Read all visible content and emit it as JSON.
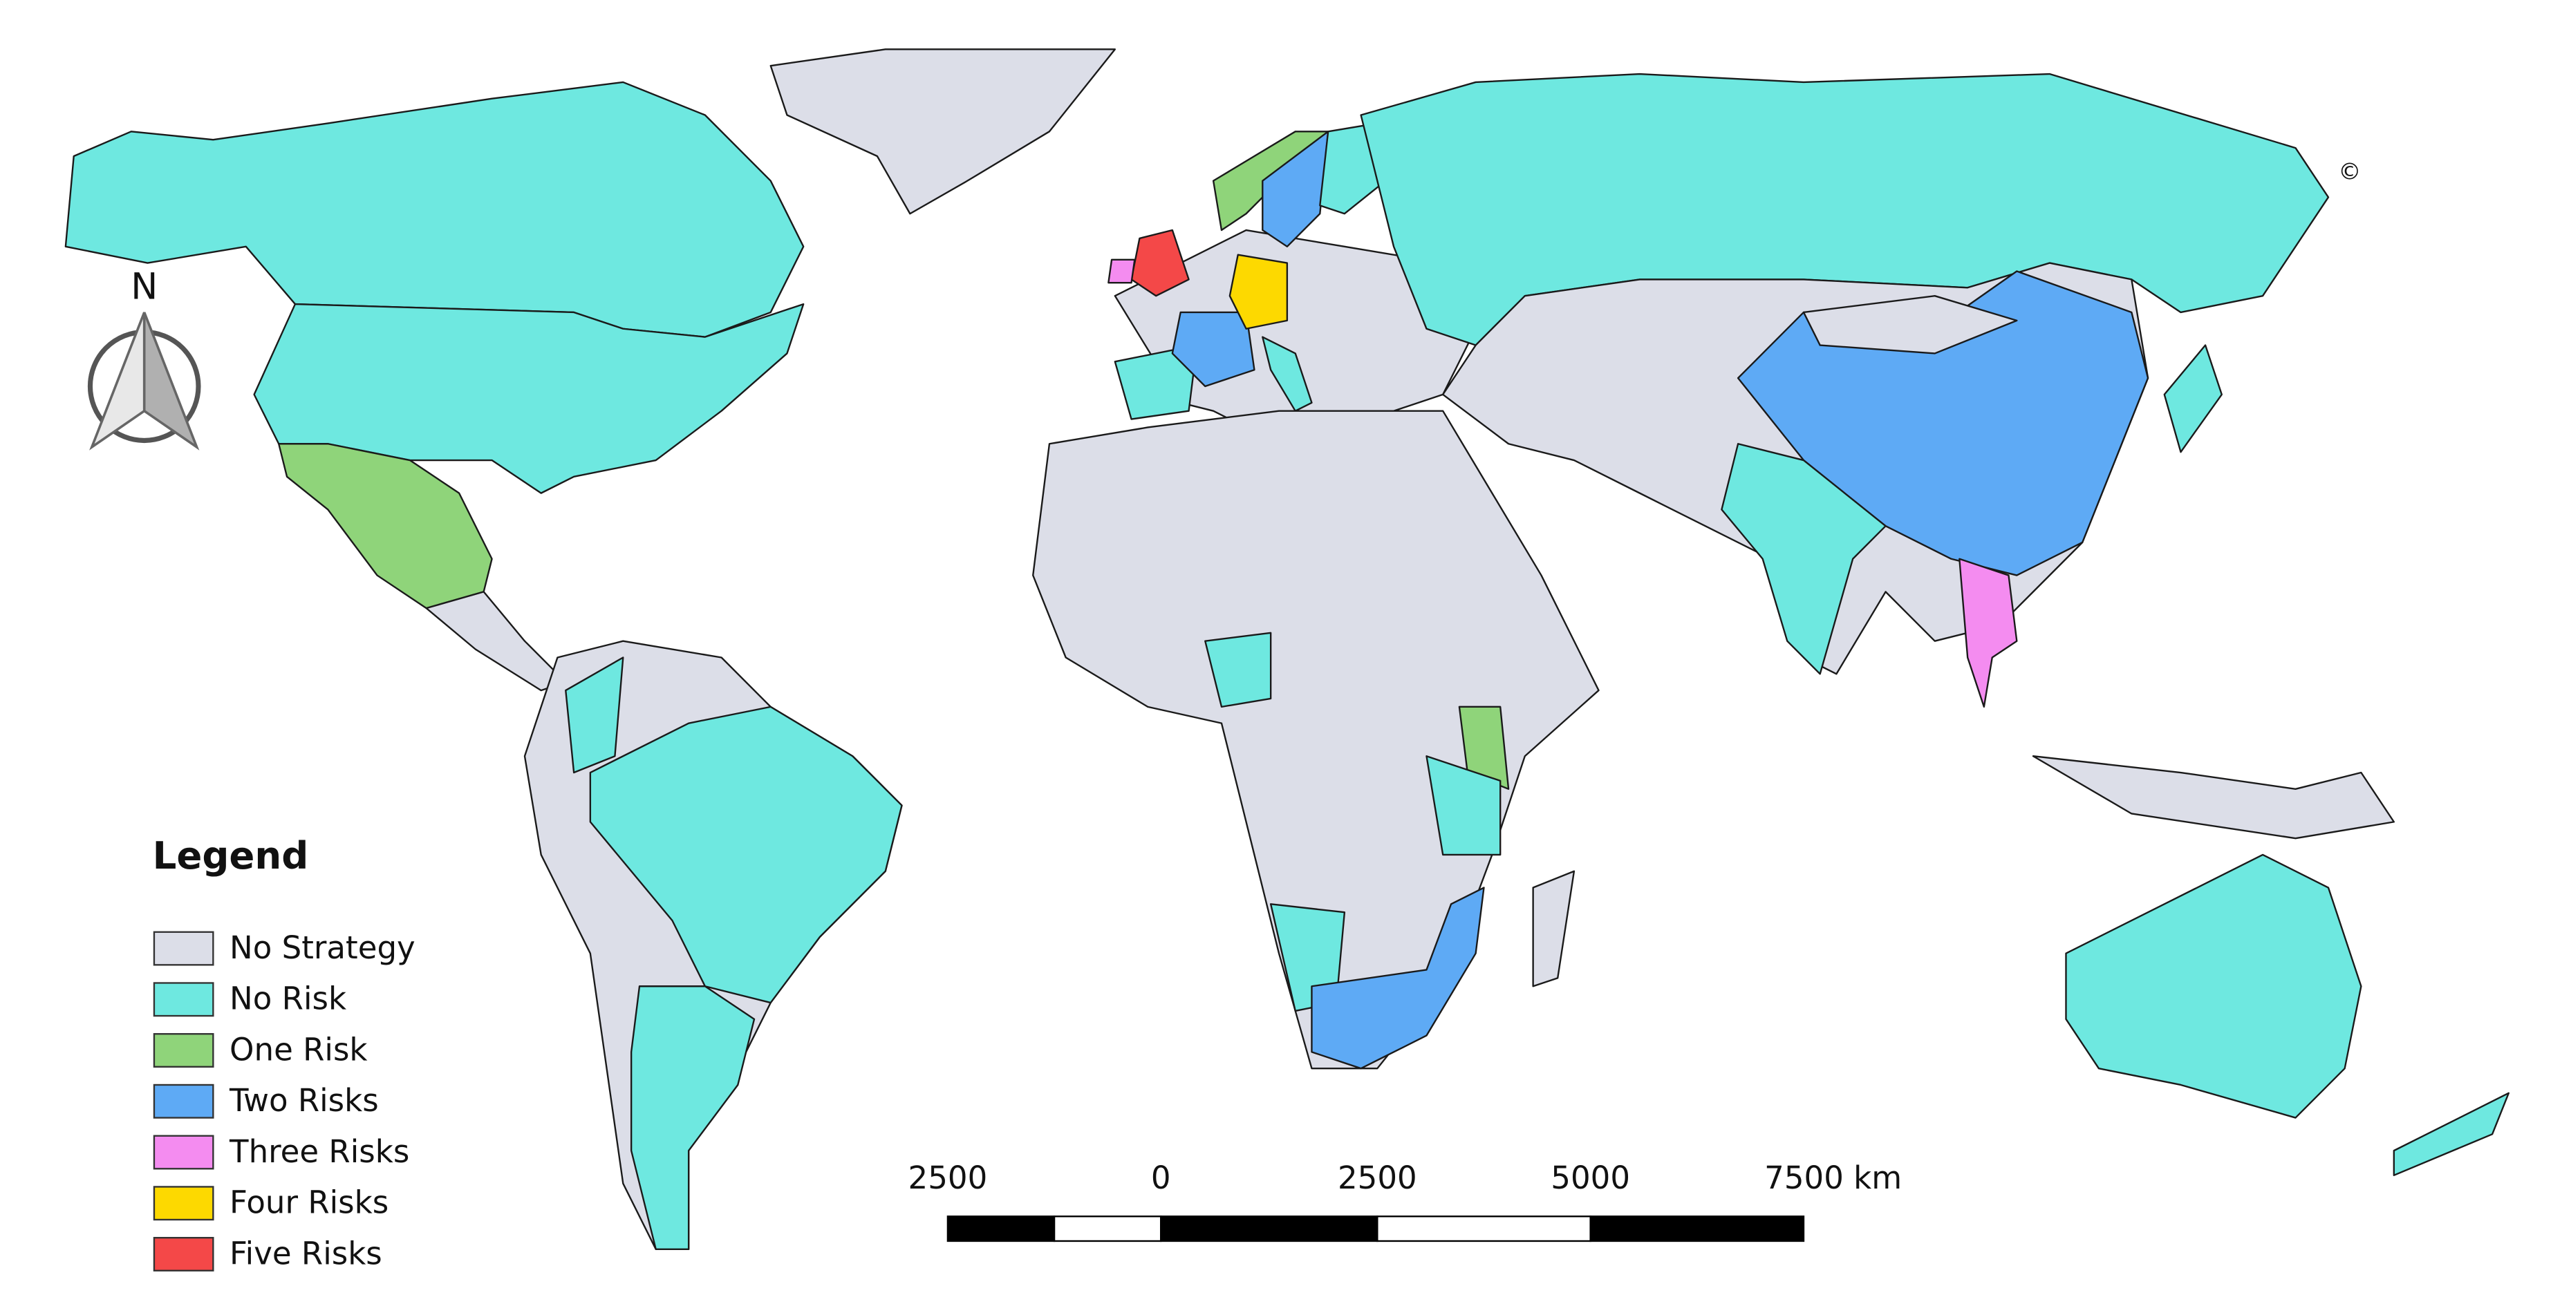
{
  "map": {
    "north": "N",
    "copyright": "©",
    "legend": {
      "title": "Legend",
      "items": [
        {
          "label": "No Strategy",
          "color": "#dcdee8"
        },
        {
          "label": "No Risk",
          "color": "#6ee8e0"
        },
        {
          "label": "One Risk",
          "color": "#8fd47a"
        },
        {
          "label": "Two Risks",
          "color": "#5eaaf5"
        },
        {
          "label": "Three Risks",
          "color": "#f48cf0"
        },
        {
          "label": "Four Risks",
          "color": "#fdd900"
        },
        {
          "label": "Five Risks",
          "color": "#f44848"
        }
      ]
    },
    "scale_bar": {
      "labels": [
        "2500",
        "0",
        "2500",
        "5000",
        "7500 km"
      ]
    }
  }
}
